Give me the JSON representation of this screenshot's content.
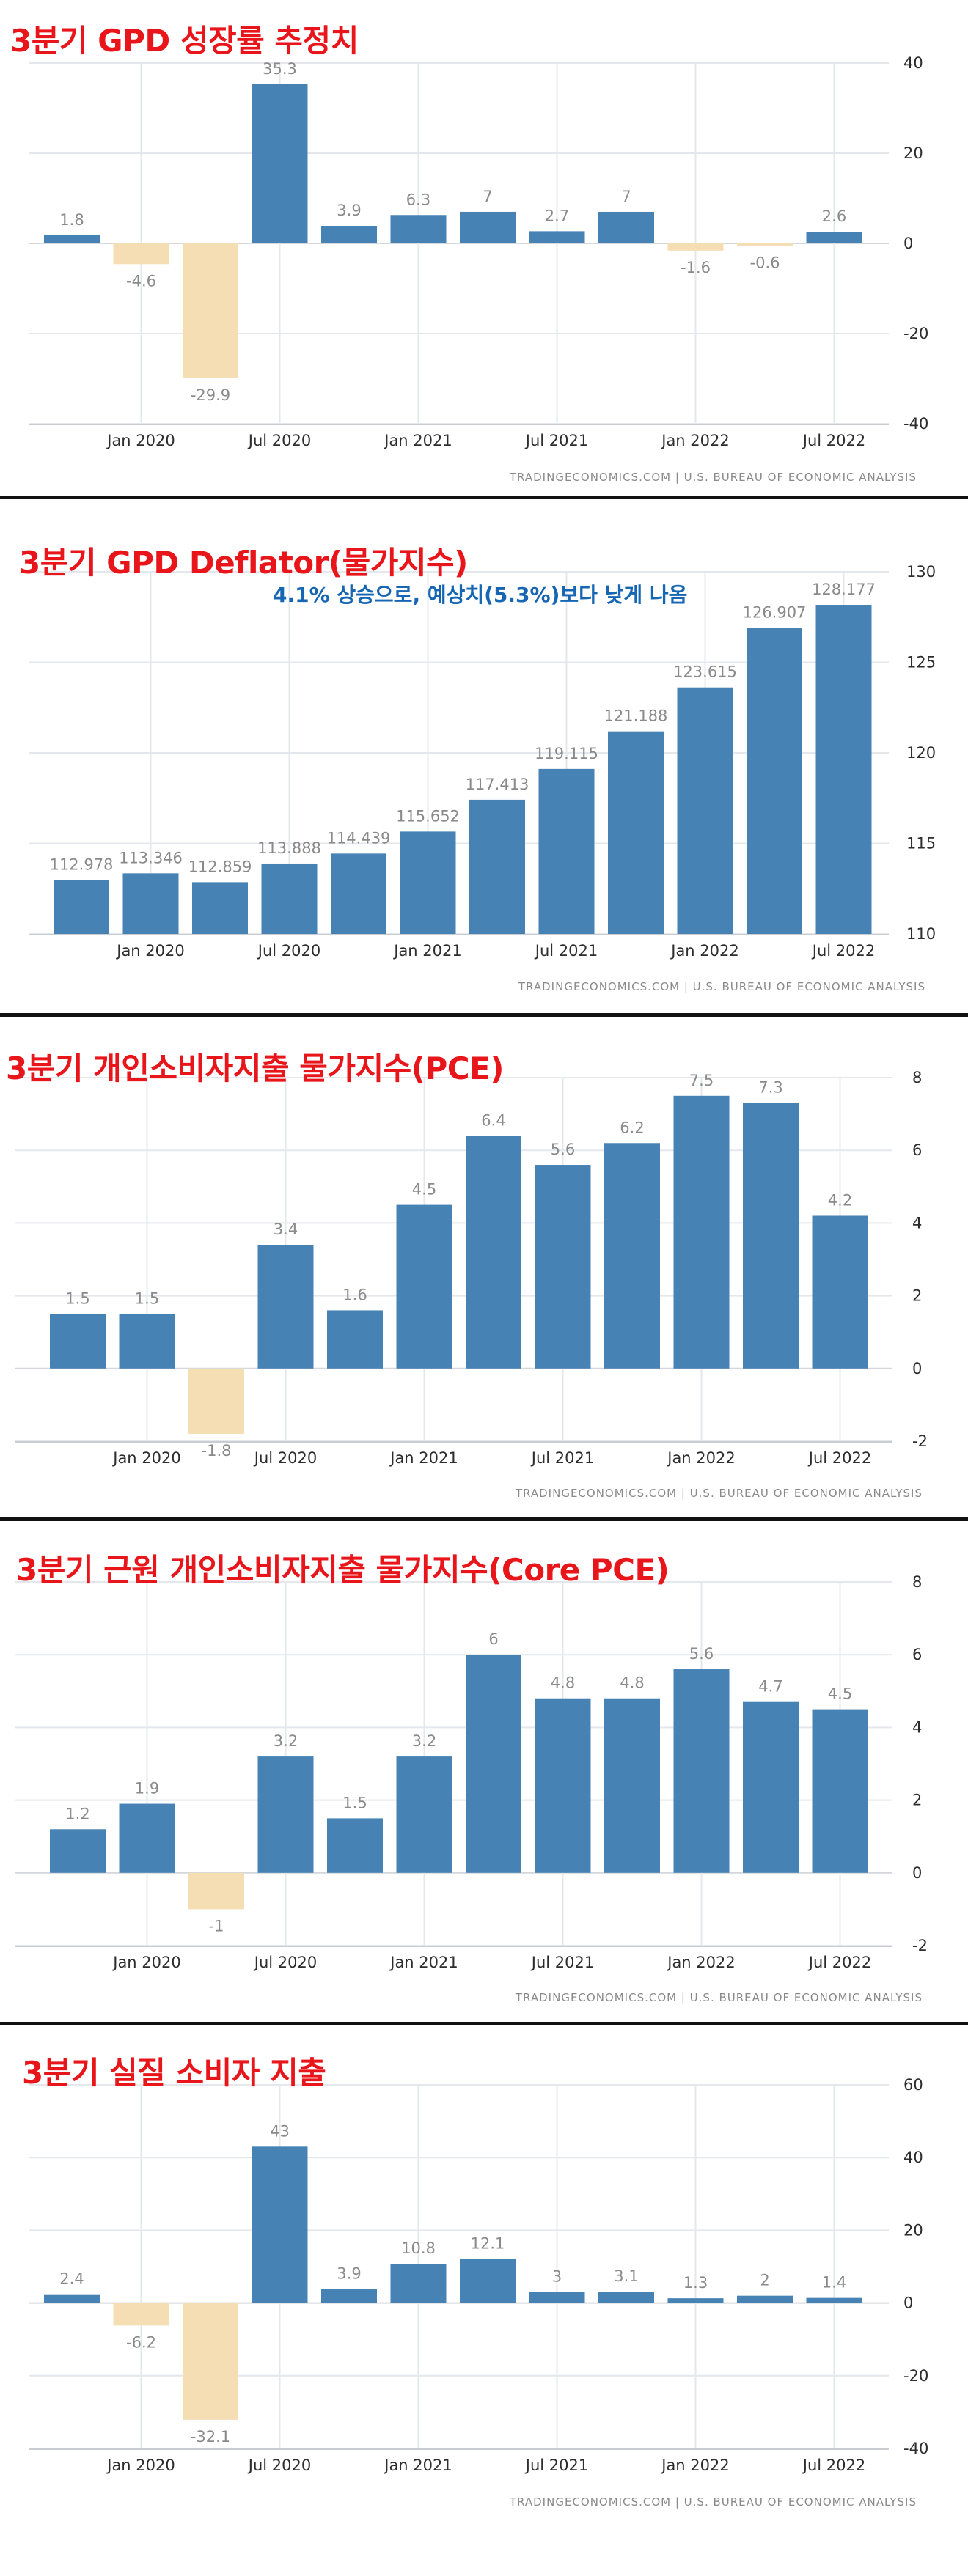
{
  "colors": {
    "positive": "#4682b4",
    "negative": "#f5deb3",
    "title": "#e8161b",
    "annotation": "#1666b4"
  },
  "chart_data": [
    {
      "type": "bar",
      "title": "3분기 GPD 성장률 추정치",
      "categories": [
        "2019-Q4",
        "2020-Q1",
        "2020-Q2",
        "2020-Q3",
        "2020-Q4",
        "2021-Q1",
        "2021-Q2",
        "2021-Q3",
        "2021-Q4",
        "2022-Q1",
        "2022-Q2",
        "2022-Q3"
      ],
      "values": [
        1.8,
        -4.6,
        -29.9,
        35.3,
        3.9,
        6.3,
        7,
        2.7,
        7,
        -1.6,
        -0.6,
        2.6
      ],
      "value_labels": [
        "1.8",
        "-4.6",
        "-29.9",
        "35.3",
        "3.9",
        "6.3",
        "7",
        "2.7",
        "7",
        "-1.6",
        "-0.6",
        "2.6"
      ],
      "ylim": [
        -40,
        40
      ],
      "yticks": [
        "40",
        "20",
        "0",
        "-20",
        "-40"
      ],
      "xticks": [
        "Jan 2020",
        "Jul 2020",
        "Jan 2021",
        "Jul 2021",
        "Jan 2022",
        "Jul 2022"
      ],
      "source": "TRADINGECONOMICS.COM | U.S. BUREAU OF ECONOMIC ANALYSIS",
      "grid": true
    },
    {
      "type": "bar",
      "title": "3분기 GPD Deflator(물가지수)",
      "annotation": "4.1% 상승으로, 예상치(5.3%)보다 낮게 나옴",
      "categories": [
        "2019-Q4",
        "2020-Q1",
        "2020-Q2",
        "2020-Q3",
        "2020-Q4",
        "2021-Q1",
        "2021-Q2",
        "2021-Q3",
        "2021-Q4",
        "2022-Q1",
        "2022-Q2",
        "2022-Q3"
      ],
      "values": [
        112.978,
        113.346,
        112.859,
        113.888,
        114.439,
        115.652,
        117.413,
        119.115,
        121.188,
        123.615,
        126.907,
        128.177
      ],
      "value_labels": [
        "112.978",
        "113.346",
        "112.859",
        "113.888",
        "114.439",
        "115.652",
        "117.413",
        "119.115",
        "121.188",
        "123.615",
        "126.907",
        "128.177"
      ],
      "ylim": [
        110,
        130
      ],
      "yticks": [
        "130",
        "125",
        "120",
        "115",
        "110"
      ],
      "xticks": [
        "Jan 2020",
        "Jul 2020",
        "Jan 2021",
        "Jul 2021",
        "Jan 2022",
        "Jul 2022"
      ],
      "source": "TRADINGECONOMICS.COM | U.S. BUREAU OF ECONOMIC ANALYSIS",
      "grid": true
    },
    {
      "type": "bar",
      "title": "3분기 개인소비자지출 물가지수(PCE)",
      "categories": [
        "2019-Q4",
        "2020-Q1",
        "2020-Q2",
        "2020-Q3",
        "2020-Q4",
        "2021-Q1",
        "2021-Q2",
        "2021-Q3",
        "2021-Q4",
        "2022-Q1",
        "2022-Q2",
        "2022-Q3"
      ],
      "values": [
        1.5,
        1.5,
        -1.8,
        3.4,
        1.6,
        4.5,
        6.4,
        5.6,
        6.2,
        7.5,
        7.3,
        4.2
      ],
      "value_labels": [
        "1.5",
        "1.5",
        "-1.8",
        "3.4",
        "1.6",
        "4.5",
        "6.4",
        "5.6",
        "6.2",
        "7.5",
        "7.3",
        "4.2"
      ],
      "ylim": [
        -2,
        8
      ],
      "yticks": [
        "8",
        "6",
        "4",
        "2",
        "0",
        "-2"
      ],
      "xticks": [
        "Jan 2020",
        "Jul 2020",
        "Jan 2021",
        "Jul 2021",
        "Jan 2022",
        "Jul 2022"
      ],
      "source": "TRADINGECONOMICS.COM | U.S. BUREAU OF ECONOMIC ANALYSIS",
      "grid": true
    },
    {
      "type": "bar",
      "title": "3분기 근원 개인소비자지출 물가지수(Core PCE)",
      "categories": [
        "2019-Q4",
        "2020-Q1",
        "2020-Q2",
        "2020-Q3",
        "2020-Q4",
        "2021-Q1",
        "2021-Q2",
        "2021-Q3",
        "2021-Q4",
        "2022-Q1",
        "2022-Q2",
        "2022-Q3"
      ],
      "values": [
        1.2,
        1.9,
        -1,
        3.2,
        1.5,
        3.2,
        6,
        4.8,
        4.8,
        5.6,
        4.7,
        4.5
      ],
      "value_labels": [
        "1.2",
        "1.9",
        "-1",
        "3.2",
        "1.5",
        "3.2",
        "6",
        "4.8",
        "4.8",
        "5.6",
        "4.7",
        "4.5"
      ],
      "ylim": [
        -2,
        8
      ],
      "yticks": [
        "8",
        "6",
        "4",
        "2",
        "0",
        "-2"
      ],
      "xticks": [
        "Jan 2020",
        "Jul 2020",
        "Jan 2021",
        "Jul 2021",
        "Jan 2022",
        "Jul 2022"
      ],
      "source": "TRADINGECONOMICS.COM | U.S. BUREAU OF ECONOMIC ANALYSIS",
      "grid": true
    },
    {
      "type": "bar",
      "title": "3분기 실질 소비자 지출",
      "categories": [
        "2019-Q4",
        "2020-Q1",
        "2020-Q2",
        "2020-Q3",
        "2020-Q4",
        "2021-Q1",
        "2021-Q2",
        "2021-Q3",
        "2021-Q4",
        "2022-Q1",
        "2022-Q2",
        "2022-Q3"
      ],
      "values": [
        2.4,
        -6.2,
        -32.1,
        43,
        3.9,
        10.8,
        12.1,
        3,
        3.1,
        1.3,
        2,
        1.4
      ],
      "value_labels": [
        "2.4",
        "-6.2",
        "-32.1",
        "43",
        "3.9",
        "10.8",
        "12.1",
        "3",
        "3.1",
        "1.3",
        "2",
        "1.4"
      ],
      "ylim": [
        -40,
        60
      ],
      "yticks": [
        "60",
        "40",
        "20",
        "0",
        "-20",
        "-40"
      ],
      "xticks": [
        "Jan 2020",
        "Jul 2020",
        "Jan 2021",
        "Jul 2021",
        "Jan 2022",
        "Jul 2022"
      ],
      "source": "TRADINGECONOMICS.COM | U.S. BUREAU OF ECONOMIC ANALYSIS",
      "grid": true
    }
  ]
}
